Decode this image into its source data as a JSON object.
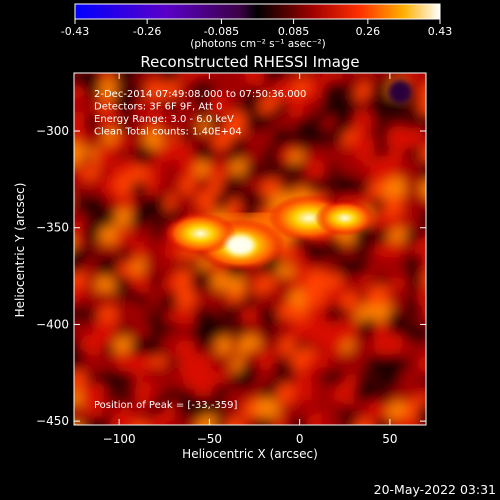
{
  "colorbar": {
    "ticks": [
      "-0.43",
      "-0.26",
      "-0.085",
      "0.085",
      "0.26",
      "0.43"
    ],
    "units_label": "(photons cm⁻² s⁻¹ asec⁻²)",
    "min": -0.43,
    "max": 0.43
  },
  "chart_data": {
    "type": "heatmap",
    "title": "Reconstructed RHESSI Image",
    "xlabel": "Heliocentric X (arcsec)",
    "ylabel": "Heliocentric Y (arcsec)",
    "xlim": [
      -125,
      70
    ],
    "ylim": [
      -452,
      -270
    ],
    "x_ticks": [
      {
        "v": -100,
        "label": "−100"
      },
      {
        "v": -50,
        "label": "−50"
      },
      {
        "v": 0,
        "label": "0"
      },
      {
        "v": 50,
        "label": "50"
      }
    ],
    "y_ticks": [
      {
        "v": -300,
        "label": "−300"
      },
      {
        "v": -350,
        "label": "−350"
      },
      {
        "v": -400,
        "label": "−400"
      },
      {
        "v": -450,
        "label": "−450"
      }
    ],
    "annotations": [
      " 2-Dec-2014 07:49:08.000 to 07:50:36.000",
      "Detectors: 3F 6F 9F, Att 0",
      "Energy Range: 3.0 - 6.0 keV",
      "Clean     Total counts: 1.40E+04"
    ],
    "peak_text": "Position of Peak = [-33,-359]",
    "peak": {
      "x": -33,
      "y": -359
    },
    "colormap": "hot (black-red-yellow-white), negative: blue-purple",
    "sources": [
      {
        "x": -33,
        "y": -359,
        "intensity": 0.43
      },
      {
        "x": 5,
        "y": -345,
        "intensity": 0.36
      },
      {
        "x": -55,
        "y": -353,
        "intensity": 0.3
      },
      {
        "x": 25,
        "y": -345,
        "intensity": 0.22
      }
    ]
  },
  "footer": {
    "date": "20-May-2022 03:31"
  }
}
